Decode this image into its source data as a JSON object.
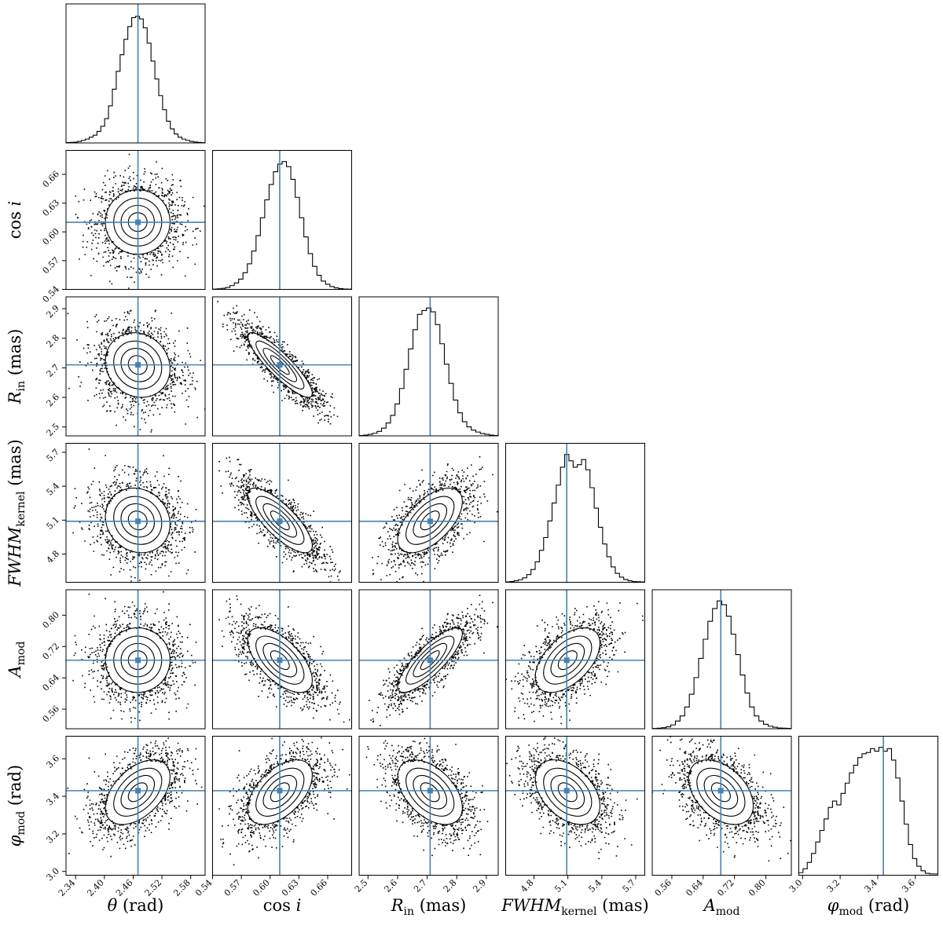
{
  "chart_data": {
    "type": "corner",
    "params": [
      {
        "key": "theta",
        "label": "θ (rad)",
        "label_main": "θ",
        "label_sub": "",
        "label_unit": " (rad)",
        "truth": 2.47,
        "range": [
          2.32,
          2.61
        ],
        "ticks": [
          2.34,
          2.4,
          2.46,
          2.52,
          2.58
        ],
        "tick_labels": [
          "2.34",
          "2.40",
          "2.46",
          "2.52",
          "2.58"
        ]
      },
      {
        "key": "cosi",
        "label": "cos i",
        "label_main": "cos i",
        "label_sub": "",
        "label_unit": "",
        "truth": 0.61,
        "range": [
          0.54,
          0.685
        ],
        "ticks": [
          0.54,
          0.57,
          0.6,
          0.63,
          0.66
        ],
        "tick_labels": [
          "0.54",
          "0.57",
          "0.60",
          "0.63",
          "0.66"
        ]
      },
      {
        "key": "Rin",
        "label": "R_in (mas)",
        "label_main": "R",
        "label_sub": "in",
        "label_unit": " (mas)",
        "truth": 2.71,
        "range": [
          2.47,
          2.94
        ],
        "ticks": [
          2.5,
          2.6,
          2.7,
          2.8,
          2.9
        ],
        "tick_labels": [
          "2.5",
          "2.6",
          "2.7",
          "2.8",
          "2.9"
        ]
      },
      {
        "key": "fwhm",
        "label": "FWHM_kernel (mas)",
        "label_main": "FWHM",
        "label_sub": "kernel",
        "label_unit": " (mas)",
        "truth": 5.09,
        "range": [
          4.55,
          5.78
        ],
        "ticks": [
          4.8,
          5.1,
          5.4,
          5.7
        ],
        "tick_labels": [
          "4.8",
          "5.1",
          "5.4",
          "5.7"
        ]
      },
      {
        "key": "amod",
        "label": "A_mod",
        "label_main": "A",
        "label_sub": "mod",
        "label_unit": "",
        "truth": 0.685,
        "range": [
          0.51,
          0.865
        ],
        "ticks": [
          0.56,
          0.64,
          0.72,
          0.8
        ],
        "tick_labels": [
          "0.56",
          "0.64",
          "0.72",
          "0.80"
        ]
      },
      {
        "key": "phimod",
        "label": "φ_mod (rad)",
        "label_main": "φ",
        "label_sub": "mod",
        "label_unit": " (rad)",
        "truth": 3.43,
        "range": [
          2.98,
          3.72
        ],
        "ticks": [
          3.0,
          3.2,
          3.4,
          3.6
        ],
        "tick_labels": [
          "3.0",
          "3.2",
          "3.4",
          "3.6"
        ]
      }
    ],
    "histograms": [
      [
        0.003,
        0.004,
        0.006,
        0.012,
        0.02,
        0.03,
        0.045,
        0.06,
        0.09,
        0.13,
        0.19,
        0.29,
        0.42,
        0.56,
        0.69,
        0.81,
        0.91,
        0.98,
        0.99,
        0.97,
        0.9,
        0.78,
        0.64,
        0.5,
        0.37,
        0.26,
        0.17,
        0.11,
        0.07,
        0.045,
        0.03,
        0.02,
        0.012,
        0.007,
        0.004,
        0.002
      ],
      [
        0.002,
        0.004,
        0.008,
        0.015,
        0.03,
        0.05,
        0.08,
        0.13,
        0.2,
        0.3,
        0.42,
        0.56,
        0.7,
        0.82,
        0.92,
        0.98,
        1.0,
        0.96,
        0.86,
        0.72,
        0.56,
        0.41,
        0.28,
        0.18,
        0.11,
        0.065,
        0.04,
        0.022,
        0.012,
        0.006,
        0.003,
        0.002
      ],
      [
        0.003,
        0.006,
        0.012,
        0.02,
        0.035,
        0.06,
        0.1,
        0.16,
        0.25,
        0.37,
        0.52,
        0.68,
        0.83,
        0.95,
        0.98,
        1.0,
        0.97,
        0.87,
        0.72,
        0.56,
        0.41,
        0.28,
        0.18,
        0.11,
        0.07,
        0.045,
        0.03,
        0.018,
        0.012,
        0.006,
        0.003
      ],
      [
        0.003,
        0.006,
        0.012,
        0.02,
        0.035,
        0.06,
        0.1,
        0.16,
        0.25,
        0.35,
        0.48,
        0.62,
        0.76,
        0.9,
        1.0,
        0.95,
        0.9,
        0.92,
        0.96,
        0.88,
        0.74,
        0.58,
        0.43,
        0.3,
        0.2,
        0.12,
        0.07,
        0.04,
        0.022,
        0.012,
        0.006,
        0.004,
        0.003
      ],
      [
        0.002,
        0.004,
        0.008,
        0.015,
        0.03,
        0.06,
        0.1,
        0.17,
        0.27,
        0.4,
        0.55,
        0.7,
        0.84,
        0.94,
        1.0,
        0.97,
        0.88,
        0.74,
        0.58,
        0.42,
        0.28,
        0.17,
        0.1,
        0.06,
        0.035,
        0.02,
        0.012,
        0.006,
        0.004,
        0.003
      ],
      [
        0.02,
        0.05,
        0.1,
        0.17,
        0.26,
        0.35,
        0.44,
        0.53,
        0.58,
        0.55,
        0.64,
        0.72,
        0.8,
        0.86,
        0.92,
        0.95,
        0.96,
        0.99,
        0.97,
        1.0,
        0.97,
        0.99,
        0.9,
        0.76,
        0.58,
        0.4,
        0.24,
        0.13,
        0.07,
        0.035,
        0.015,
        0.01,
        0.01
      ]
    ],
    "correlations": {
      "1,0": 0.0,
      "2,0": -0.12,
      "2,1": -0.88,
      "3,0": -0.12,
      "3,1": -0.78,
      "3,2": 0.58,
      "4,0": 0.0,
      "4,1": -0.62,
      "4,2": 0.82,
      "4,3": 0.52,
      "5,0": 0.48,
      "5,1": 0.52,
      "5,2": -0.48,
      "5,3": -0.42,
      "5,4": -0.42
    },
    "grid": false,
    "truth_color": "#4682b4"
  }
}
